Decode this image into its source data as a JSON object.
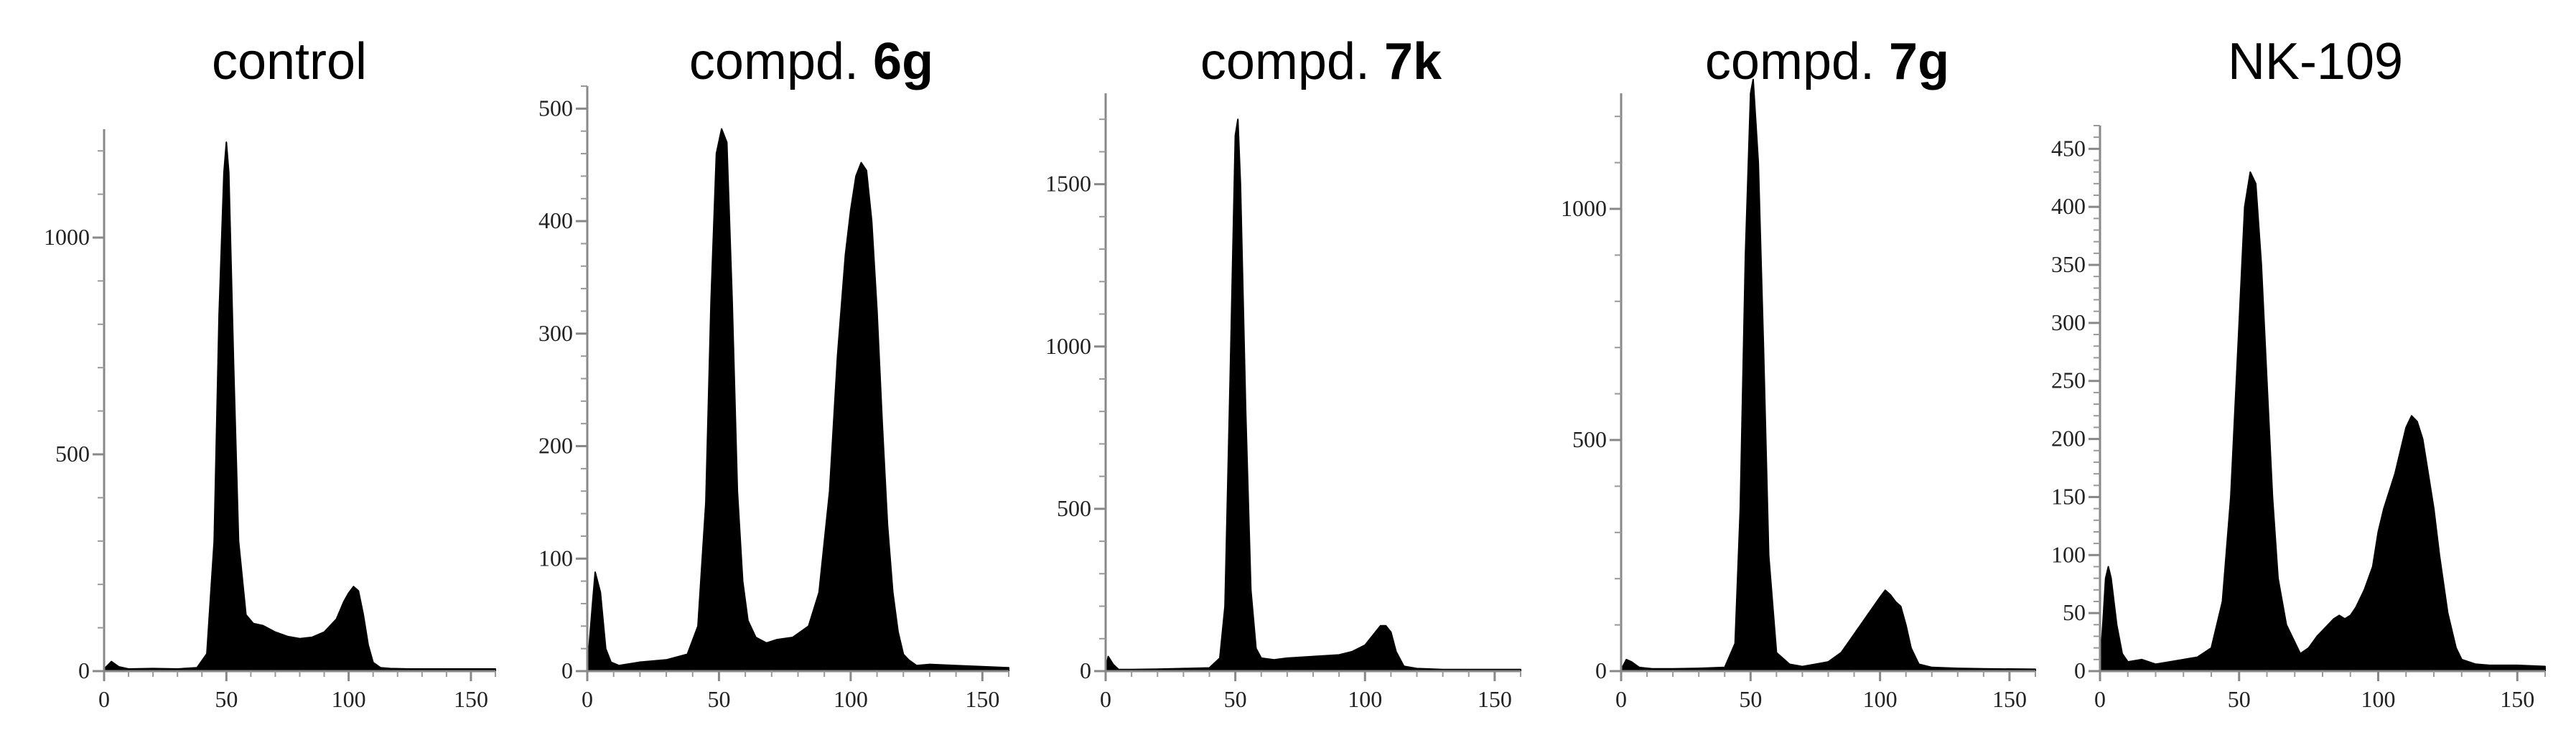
{
  "chart_data": [
    {
      "type": "area",
      "title": "control",
      "title_parts": [
        {
          "text": "control",
          "bold": false
        }
      ],
      "xlim": [
        0,
        160
      ],
      "ylim": [
        0,
        1250
      ],
      "x_ticks": [
        0,
        50,
        100,
        150
      ],
      "y_ticks": [
        0,
        500,
        1000
      ],
      "series": [
        {
          "x": [
            0,
            3,
            6,
            10,
            20,
            30,
            38,
            42,
            45,
            47,
            49,
            50,
            51,
            53,
            55,
            58,
            61,
            65,
            70,
            75,
            80,
            85,
            90,
            95,
            98,
            100,
            102,
            104,
            106,
            108,
            110,
            113,
            117,
            125,
            135,
            145,
            160
          ],
          "y": [
            5,
            22,
            10,
            5,
            6,
            5,
            8,
            40,
            300,
            820,
            1150,
            1220,
            1150,
            700,
            300,
            130,
            110,
            105,
            90,
            80,
            75,
            78,
            90,
            120,
            160,
            180,
            195,
            185,
            130,
            60,
            20,
            8,
            6,
            5,
            5,
            5,
            5
          ]
        }
      ]
    },
    {
      "type": "area",
      "title": "compd. 6g",
      "title_parts": [
        {
          "text": "compd. ",
          "bold": false
        },
        {
          "text": "6g",
          "bold": true
        }
      ],
      "xlim": [
        0,
        160
      ],
      "ylim": [
        0,
        520
      ],
      "x_ticks": [
        0,
        50,
        100,
        150
      ],
      "y_ticks": [
        0,
        100,
        200,
        300,
        400,
        500
      ],
      "series": [
        {
          "x": [
            0,
            2,
            3,
            5,
            7,
            9,
            12,
            20,
            30,
            38,
            42,
            45,
            47,
            49,
            51,
            53,
            55,
            57,
            59,
            61,
            64,
            68,
            72,
            78,
            84,
            88,
            92,
            95,
            98,
            100,
            102,
            104,
            106,
            108,
            110,
            112,
            114,
            116,
            118,
            120,
            122,
            125,
            130,
            140,
            150,
            160
          ],
          "y": [
            2,
            60,
            88,
            70,
            20,
            8,
            5,
            8,
            10,
            15,
            40,
            150,
            330,
            460,
            482,
            470,
            330,
            160,
            80,
            45,
            30,
            25,
            28,
            30,
            40,
            70,
            160,
            280,
            370,
            410,
            440,
            452,
            445,
            400,
            320,
            220,
            130,
            70,
            35,
            15,
            10,
            5,
            6,
            5,
            4,
            3
          ]
        }
      ]
    },
    {
      "type": "area",
      "title": "compd. 7k",
      "title_parts": [
        {
          "text": "compd. ",
          "bold": false
        },
        {
          "text": "7k",
          "bold": true
        }
      ],
      "xlim": [
        0,
        160
      ],
      "ylim": [
        0,
        1780
      ],
      "x_ticks": [
        0,
        50,
        100,
        150
      ],
      "y_ticks": [
        0,
        500,
        1000,
        1500
      ],
      "series": [
        {
          "x": [
            0,
            1,
            3,
            5,
            10,
            20,
            30,
            40,
            44,
            46,
            48,
            50,
            51,
            52,
            54,
            56,
            58,
            60,
            65,
            70,
            80,
            90,
            95,
            100,
            104,
            106,
            108,
            110,
            112,
            115,
            120,
            130,
            160
          ],
          "y": [
            5,
            45,
            20,
            5,
            5,
            6,
            8,
            10,
            40,
            200,
            900,
            1650,
            1700,
            1500,
            800,
            250,
            70,
            40,
            35,
            40,
            45,
            50,
            60,
            80,
            120,
            140,
            140,
            120,
            60,
            15,
            8,
            5,
            5
          ]
        }
      ]
    },
    {
      "type": "area",
      "title": "compd. 7g",
      "title_parts": [
        {
          "text": "compd. ",
          "bold": false
        },
        {
          "text": "7g",
          "bold": true
        }
      ],
      "xlim": [
        0,
        160
      ],
      "ylim": [
        0,
        1250
      ],
      "x_ticks": [
        0,
        50,
        100,
        150
      ],
      "y_ticks": [
        0,
        500,
        1000
      ],
      "series": [
        {
          "x": [
            0,
            2,
            4,
            7,
            12,
            20,
            30,
            40,
            44,
            46,
            48,
            50,
            51,
            53,
            55,
            57,
            60,
            65,
            70,
            80,
            85,
            90,
            95,
            100,
            102,
            104,
            106,
            108,
            110,
            112,
            115,
            120,
            130,
            140,
            160
          ],
          "y": [
            3,
            25,
            20,
            8,
            5,
            5,
            6,
            8,
            60,
            350,
            900,
            1250,
            1280,
            1100,
            700,
            250,
            40,
            15,
            10,
            20,
            40,
            80,
            120,
            160,
            175,
            165,
            150,
            140,
            100,
            50,
            15,
            8,
            6,
            5,
            4
          ]
        }
      ]
    },
    {
      "type": "area",
      "title": "NK-109",
      "title_parts": [
        {
          "text": "NK-109",
          "bold": false
        }
      ],
      "xlim": [
        0,
        160
      ],
      "ylim": [
        0,
        470
      ],
      "x_ticks": [
        0,
        50,
        100,
        150
      ],
      "y_ticks": [
        0,
        50,
        100,
        150,
        200,
        250,
        300,
        350,
        400,
        450
      ],
      "series": [
        {
          "x": [
            0,
            1,
            2,
            3,
            4,
            6,
            8,
            10,
            15,
            20,
            25,
            30,
            35,
            40,
            44,
            47,
            50,
            52,
            54,
            56,
            58,
            60,
            62,
            64,
            67,
            70,
            72,
            75,
            78,
            80,
            82,
            84,
            86,
            88,
            90,
            92,
            95,
            98,
            100,
            102,
            104,
            106,
            108,
            110,
            112,
            114,
            116,
            118,
            120,
            122,
            125,
            128,
            130,
            135,
            140,
            150,
            160
          ],
          "y": [
            5,
            40,
            80,
            90,
            80,
            40,
            15,
            8,
            10,
            6,
            8,
            10,
            12,
            20,
            60,
            150,
            300,
            400,
            430,
            420,
            350,
            250,
            150,
            80,
            40,
            25,
            15,
            20,
            30,
            35,
            40,
            45,
            48,
            45,
            48,
            55,
            70,
            90,
            120,
            140,
            155,
            170,
            190,
            210,
            220,
            215,
            200,
            170,
            140,
            100,
            50,
            20,
            10,
            6,
            5,
            5,
            4
          ]
        }
      ]
    }
  ]
}
